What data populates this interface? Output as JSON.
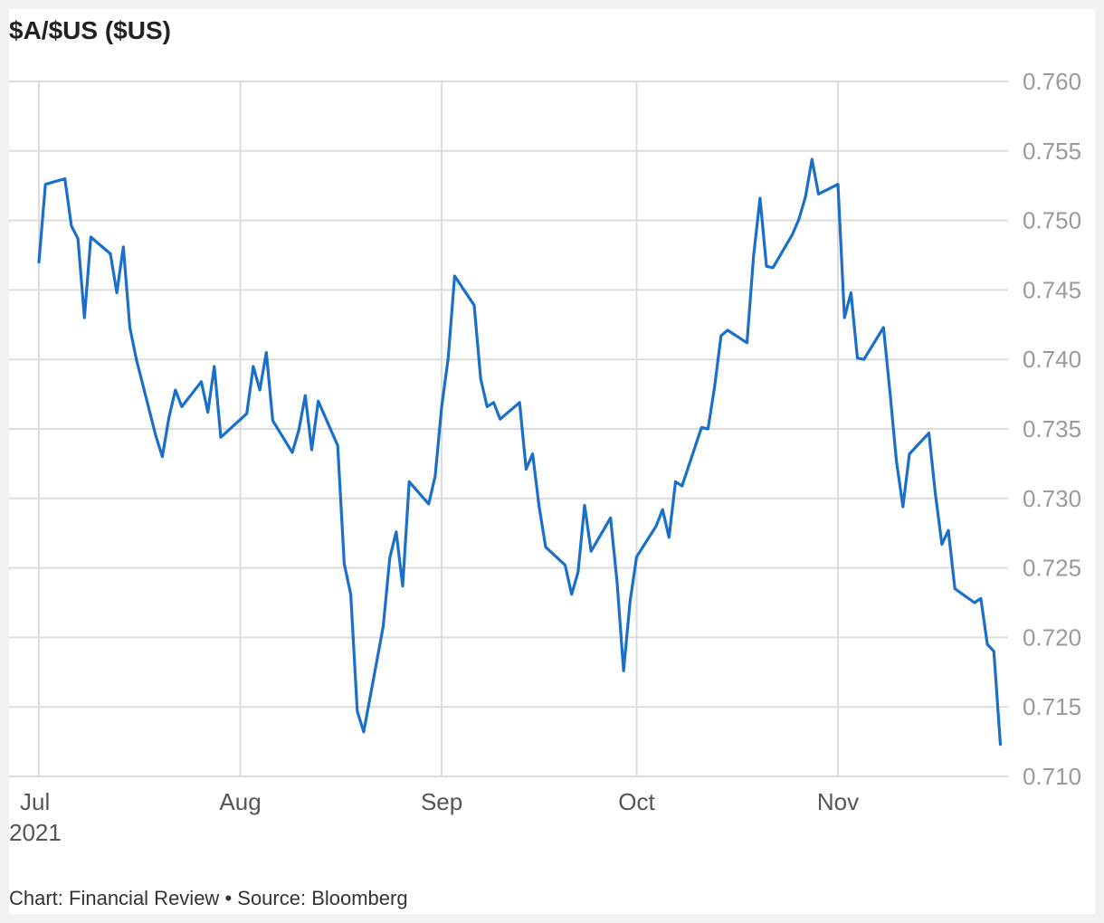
{
  "title": "$A/$US ($US)",
  "footer": {
    "credit": "Chart: Financial Review",
    "separator": "•",
    "source": "Source: Bloomberg"
  },
  "colors": {
    "line": "#1a6fc9",
    "grid": "#dcdcdc",
    "axis_text": "#9a9a9a"
  },
  "chart_data": {
    "type": "line",
    "title": "$A/$US ($US)",
    "xlabel": "",
    "ylabel": "",
    "x_axis": {
      "type": "date",
      "ticks": [
        {
          "label": "Jul",
          "sublabel": "2021",
          "date": "2021-07-01"
        },
        {
          "label": "Aug",
          "date": "2021-08-01"
        },
        {
          "label": "Sep",
          "date": "2021-09-01"
        },
        {
          "label": "Oct",
          "date": "2021-10-01"
        },
        {
          "label": "Nov",
          "date": "2021-11-01"
        }
      ],
      "range": [
        "2021-07-01",
        "2021-11-26"
      ]
    },
    "y_axis": {
      "ylim": [
        0.71,
        0.76
      ],
      "ticks": [
        "0.760",
        "0.755",
        "0.750",
        "0.745",
        "0.740",
        "0.735",
        "0.730",
        "0.725",
        "0.720",
        "0.715",
        "0.710"
      ],
      "position": "right",
      "grid": true
    },
    "legend": "none",
    "series": [
      {
        "points": [
          [
            "2021-07-01",
            0.747
          ],
          [
            "2021-07-02",
            0.7526
          ],
          [
            "2021-07-05",
            0.753
          ],
          [
            "2021-07-06",
            0.7496
          ],
          [
            "2021-07-07",
            0.7487
          ],
          [
            "2021-07-08",
            0.743
          ],
          [
            "2021-07-09",
            0.7488
          ],
          [
            "2021-07-12",
            0.7476
          ],
          [
            "2021-07-13",
            0.7448
          ],
          [
            "2021-07-14",
            0.7481
          ],
          [
            "2021-07-15",
            0.7423
          ],
          [
            "2021-07-16",
            0.74
          ],
          [
            "2021-07-19",
            0.7345
          ],
          [
            "2021-07-20",
            0.733
          ],
          [
            "2021-07-21",
            0.7358
          ],
          [
            "2021-07-22",
            0.7378
          ],
          [
            "2021-07-23",
            0.7366
          ],
          [
            "2021-07-26",
            0.7384
          ],
          [
            "2021-07-27",
            0.7362
          ],
          [
            "2021-07-28",
            0.7395
          ],
          [
            "2021-07-29",
            0.7344
          ],
          [
            "2021-08-02",
            0.7361
          ],
          [
            "2021-08-03",
            0.7395
          ],
          [
            "2021-08-04",
            0.7378
          ],
          [
            "2021-08-05",
            0.7405
          ],
          [
            "2021-08-06",
            0.7356
          ],
          [
            "2021-08-09",
            0.7333
          ],
          [
            "2021-08-10",
            0.7349
          ],
          [
            "2021-08-11",
            0.7374
          ],
          [
            "2021-08-12",
            0.7335
          ],
          [
            "2021-08-13",
            0.737
          ],
          [
            "2021-08-16",
            0.7338
          ],
          [
            "2021-08-17",
            0.7253
          ],
          [
            "2021-08-18",
            0.7231
          ],
          [
            "2021-08-19",
            0.7147
          ],
          [
            "2021-08-20",
            0.7132
          ],
          [
            "2021-08-23",
            0.7208
          ],
          [
            "2021-08-24",
            0.7257
          ],
          [
            "2021-08-25",
            0.7276
          ],
          [
            "2021-08-26",
            0.7237
          ],
          [
            "2021-08-27",
            0.7312
          ],
          [
            "2021-08-30",
            0.7296
          ],
          [
            "2021-08-31",
            0.7316
          ],
          [
            "2021-09-01",
            0.7366
          ],
          [
            "2021-09-02",
            0.7401
          ],
          [
            "2021-09-03",
            0.746
          ],
          [
            "2021-09-06",
            0.7439
          ],
          [
            "2021-09-07",
            0.7386
          ],
          [
            "2021-09-08",
            0.7366
          ],
          [
            "2021-09-09",
            0.7369
          ],
          [
            "2021-09-10",
            0.7357
          ],
          [
            "2021-09-13",
            0.7369
          ],
          [
            "2021-09-14",
            0.7321
          ],
          [
            "2021-09-15",
            0.7332
          ],
          [
            "2021-09-16",
            0.7294
          ],
          [
            "2021-09-17",
            0.7265
          ],
          [
            "2021-09-20",
            0.7252
          ],
          [
            "2021-09-21",
            0.7231
          ],
          [
            "2021-09-22",
            0.7247
          ],
          [
            "2021-09-23",
            0.7295
          ],
          [
            "2021-09-24",
            0.7262
          ],
          [
            "2021-09-27",
            0.7286
          ],
          [
            "2021-09-28",
            0.724
          ],
          [
            "2021-09-29",
            0.7176
          ],
          [
            "2021-09-30",
            0.7226
          ],
          [
            "2021-10-01",
            0.7258
          ],
          [
            "2021-10-04",
            0.728
          ],
          [
            "2021-10-05",
            0.7292
          ],
          [
            "2021-10-06",
            0.7272
          ],
          [
            "2021-10-07",
            0.7312
          ],
          [
            "2021-10-08",
            0.7309
          ],
          [
            "2021-10-11",
            0.7351
          ],
          [
            "2021-10-12",
            0.735
          ],
          [
            "2021-10-13",
            0.738
          ],
          [
            "2021-10-14",
            0.7417
          ],
          [
            "2021-10-15",
            0.7421
          ],
          [
            "2021-10-18",
            0.7412
          ],
          [
            "2021-10-19",
            0.7474
          ],
          [
            "2021-10-20",
            0.7516
          ],
          [
            "2021-10-21",
            0.7467
          ],
          [
            "2021-10-22",
            0.7466
          ],
          [
            "2021-10-25",
            0.749
          ],
          [
            "2021-10-26",
            0.7501
          ],
          [
            "2021-10-27",
            0.7517
          ],
          [
            "2021-10-28",
            0.7544
          ],
          [
            "2021-10-29",
            0.7519
          ],
          [
            "2021-11-01",
            0.7526
          ],
          [
            "2021-11-02",
            0.743
          ],
          [
            "2021-11-03",
            0.7448
          ],
          [
            "2021-11-04",
            0.7401
          ],
          [
            "2021-11-05",
            0.74
          ],
          [
            "2021-11-08",
            0.7423
          ],
          [
            "2021-11-09",
            0.7377
          ],
          [
            "2021-11-10",
            0.7327
          ],
          [
            "2021-11-11",
            0.7294
          ],
          [
            "2021-11-12",
            0.7332
          ],
          [
            "2021-11-15",
            0.7347
          ],
          [
            "2021-11-16",
            0.7303
          ],
          [
            "2021-11-17",
            0.7267
          ],
          [
            "2021-11-18",
            0.7277
          ],
          [
            "2021-11-19",
            0.7235
          ],
          [
            "2021-11-22",
            0.7225
          ],
          [
            "2021-11-23",
            0.7228
          ],
          [
            "2021-11-24",
            0.7195
          ],
          [
            "2021-11-25",
            0.719
          ],
          [
            "2021-11-26",
            0.7123
          ]
        ]
      }
    ]
  }
}
